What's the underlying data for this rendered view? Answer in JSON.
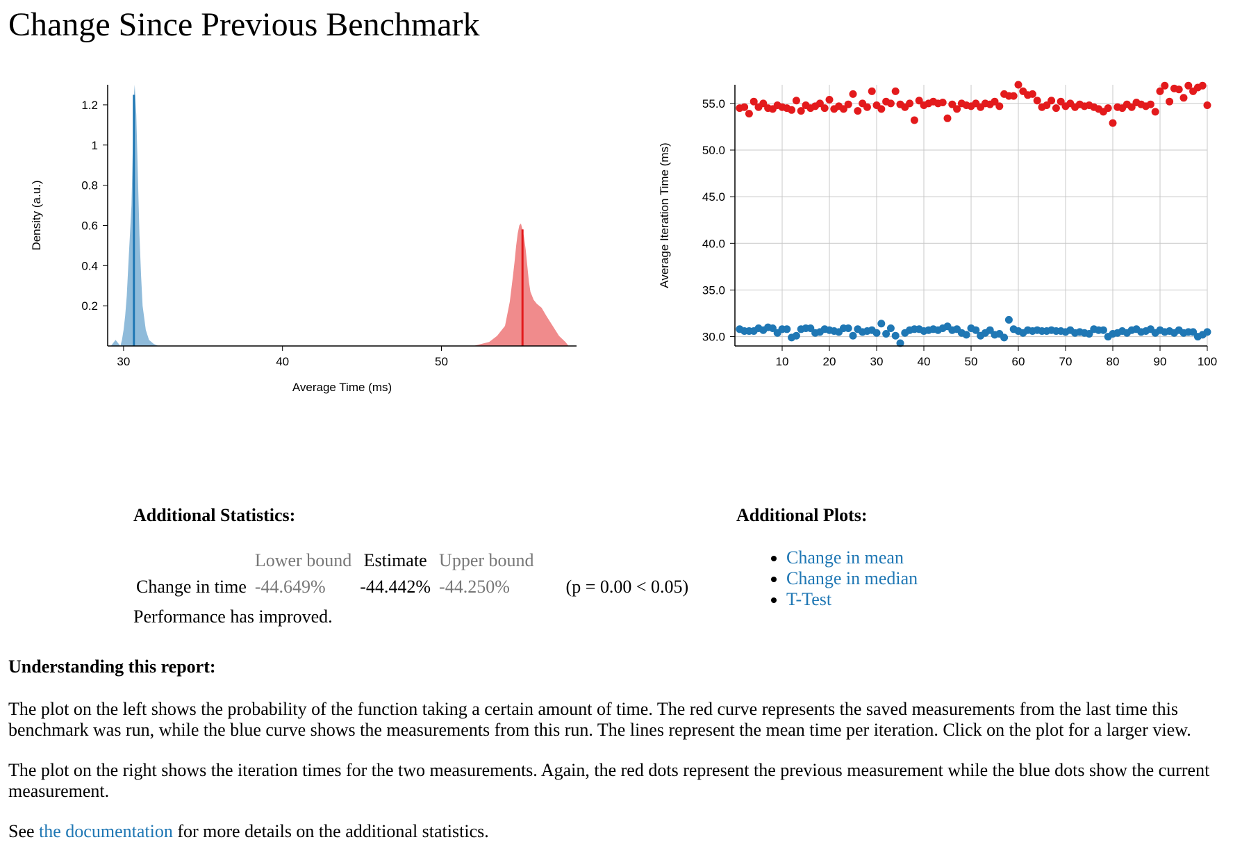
{
  "page": {
    "title": "Change Since Previous Benchmark"
  },
  "colors": {
    "current": "#1f77b4",
    "current_fill": "#8fbbda",
    "previous": "#e31a1c",
    "previous_fill": "#f08b8c",
    "link": "#1f77b4",
    "muted": "#777777"
  },
  "chart_data": [
    {
      "type": "area",
      "name": "density",
      "xlabel": "Average Time (ms)",
      "ylabel": "Density (a.u.)",
      "xlim": [
        29,
        58.5
      ],
      "ylim": [
        0,
        1.3
      ],
      "xticks": [
        30,
        40,
        50
      ],
      "yticks": [
        0.2,
        0.4,
        0.6,
        0.8,
        1,
        1.2
      ],
      "yticklabels": [
        "0.2",
        "0.4",
        "0.6",
        "0.8",
        "1",
        "1.2"
      ],
      "grid": false,
      "series": [
        {
          "role": "current",
          "mean": 30.65,
          "x": [
            29.2,
            29.5,
            29.8,
            29.9,
            30.0,
            30.1,
            30.2,
            30.3,
            30.4,
            30.5,
            30.6,
            30.65,
            30.7,
            30.8,
            30.9,
            31.0,
            31.1,
            31.2,
            31.4,
            31.6,
            31.9,
            32.2
          ],
          "y": [
            0.0,
            0.03,
            0.0,
            0.03,
            0.08,
            0.15,
            0.25,
            0.4,
            0.55,
            0.7,
            1.05,
            1.25,
            1.3,
            1.15,
            0.85,
            0.55,
            0.35,
            0.2,
            0.08,
            0.03,
            0.01,
            0.0
          ]
        },
        {
          "role": "previous",
          "mean": 55.1,
          "x": [
            52.0,
            53.0,
            53.5,
            54.0,
            54.3,
            54.5,
            54.6,
            54.7,
            54.8,
            54.9,
            55.0,
            55.1,
            55.2,
            55.3,
            55.4,
            55.5,
            55.6,
            55.8,
            56.0,
            56.3,
            56.6,
            57.0,
            57.4,
            57.8,
            58.0
          ],
          "y": [
            0.0,
            0.02,
            0.05,
            0.1,
            0.22,
            0.35,
            0.42,
            0.5,
            0.56,
            0.6,
            0.61,
            0.58,
            0.54,
            0.48,
            0.4,
            0.32,
            0.27,
            0.23,
            0.21,
            0.19,
            0.15,
            0.1,
            0.05,
            0.02,
            0.0
          ]
        }
      ]
    },
    {
      "type": "scatter",
      "name": "iteration-times",
      "xlabel": "",
      "ylabel": "Average Iteration Time (ms)",
      "xlim": [
        0,
        100
      ],
      "ylim": [
        29,
        57
      ],
      "xticks": [
        10,
        20,
        30,
        40,
        50,
        60,
        70,
        80,
        90,
        100
      ],
      "yticks": [
        30,
        35,
        40,
        45,
        50,
        55
      ],
      "yticklabels": [
        "30.0",
        "35.0",
        "40.0",
        "45.0",
        "50.0",
        "55.0"
      ],
      "grid": true,
      "series": [
        {
          "role": "previous",
          "y": [
            54.5,
            54.6,
            53.9,
            55.2,
            54.6,
            55.0,
            54.5,
            54.4,
            54.8,
            54.6,
            54.5,
            54.3,
            55.3,
            54.2,
            54.8,
            54.5,
            54.7,
            55.0,
            54.5,
            55.4,
            54.4,
            54.7,
            54.4,
            54.9,
            56.0,
            54.2,
            55.0,
            54.6,
            56.3,
            54.8,
            54.4,
            55.2,
            55.0,
            56.3,
            54.9,
            54.6,
            55.0,
            53.2,
            55.3,
            54.8,
            55.0,
            55.2,
            55.0,
            55.1,
            53.4,
            54.9,
            54.4,
            55.0,
            54.8,
            54.7,
            55.0,
            54.6,
            55.0,
            54.9,
            55.2,
            54.7,
            56.0,
            55.8,
            55.8,
            57.0,
            56.3,
            55.9,
            56.0,
            55.3,
            54.6,
            54.8,
            55.3,
            54.5,
            55.2,
            54.7,
            55.0,
            54.6,
            54.9,
            54.7,
            54.8,
            54.6,
            54.4,
            54.1,
            54.5,
            52.9,
            54.6,
            54.5,
            54.9,
            54.6,
            55.1,
            54.9,
            54.7,
            54.9,
            54.1,
            56.3,
            56.9,
            55.2,
            56.6,
            56.5,
            55.6,
            56.9,
            56.3,
            56.7,
            56.9,
            54.8
          ]
        },
        {
          "role": "current",
          "y": [
            30.8,
            30.6,
            30.6,
            30.6,
            30.9,
            30.7,
            31.0,
            30.9,
            30.4,
            30.8,
            30.8,
            29.9,
            30.1,
            30.8,
            30.9,
            30.9,
            30.4,
            30.5,
            30.8,
            30.7,
            30.6,
            30.5,
            30.9,
            30.9,
            30.1,
            30.8,
            30.5,
            30.6,
            30.7,
            30.4,
            31.4,
            30.3,
            30.9,
            30.1,
            29.3,
            30.4,
            30.7,
            30.8,
            30.8,
            30.6,
            30.7,
            30.8,
            30.7,
            30.9,
            31.1,
            30.7,
            30.8,
            30.4,
            30.2,
            30.9,
            30.7,
            30.1,
            30.4,
            30.7,
            30.2,
            30.3,
            29.9,
            31.8,
            30.8,
            30.6,
            30.4,
            30.7,
            30.6,
            30.7,
            30.6,
            30.6,
            30.7,
            30.6,
            30.6,
            30.5,
            30.7,
            30.4,
            30.5,
            30.4,
            30.3,
            30.8,
            30.7,
            30.7,
            30.0,
            30.3,
            30.4,
            30.6,
            30.4,
            30.7,
            30.8,
            30.5,
            30.6,
            30.8,
            30.4,
            30.7,
            30.5,
            30.6,
            30.4,
            30.7,
            30.4,
            30.5,
            30.5,
            30.0,
            30.2,
            30.5
          ]
        }
      ]
    }
  ],
  "stats": {
    "heading": "Additional Statistics:",
    "col_lower": "Lower bound",
    "col_estimate": "Estimate",
    "col_upper": "Upper bound",
    "row_label": "Change in time",
    "lower": "-44.649%",
    "estimate": "-44.442%",
    "upper": "-44.250%",
    "pvalue": "(p = 0.00 < 0.05)",
    "verdict": "Performance has improved."
  },
  "plots": {
    "heading": "Additional Plots:",
    "links": [
      "Change in mean",
      "Change in median",
      "T-Test"
    ]
  },
  "understanding": {
    "heading": "Understanding this report:",
    "para1": "The plot on the left shows the probability of the function taking a certain amount of time. The red curve represents the saved measurements from the last time this benchmark was run, while the blue curve shows the measurements from this run. The lines represent the mean time per iteration. Click on the plot for a larger view.",
    "para2": "The plot on the right shows the iteration times for the two measurements. Again, the red dots represent the previous measurement while the blue dots show the current measurement.",
    "see_prefix": "See ",
    "see_link": "the documentation",
    "see_suffix": " for more details on the additional statistics."
  }
}
